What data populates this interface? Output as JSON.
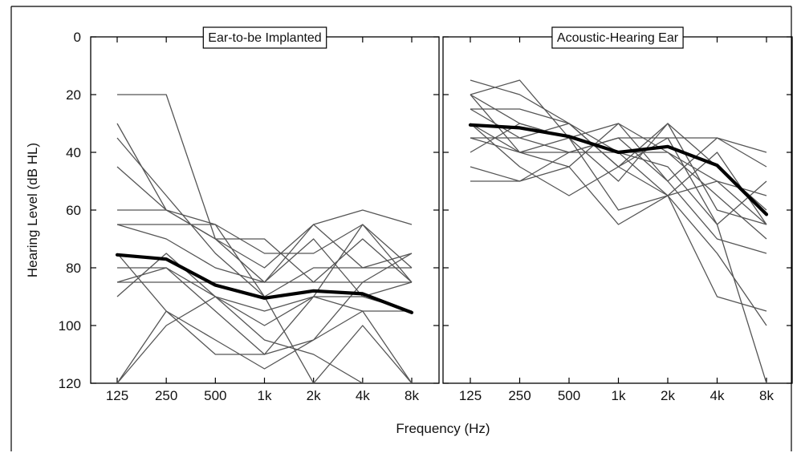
{
  "chart_data": [
    {
      "type": "line",
      "title": "Ear-to-be Implanted",
      "ylabel": "Hearing Level (dB HL)",
      "xlabel": "Frequency (Hz)",
      "x_categories": [
        "125",
        "250",
        "500",
        "1k",
        "2k",
        "4k",
        "8k"
      ],
      "x_positions_note": "octave steps",
      "ylim": [
        0,
        120
      ],
      "y_inverted": true,
      "y_ticks": [
        0,
        20,
        40,
        60,
        80,
        100,
        120
      ],
      "individual_series": [
        {
          "values": [
            20,
            20,
            70,
            70,
            85,
            70,
            85
          ]
        },
        {
          "values": [
            30,
            60,
            70,
            85,
            65,
            60,
            65
          ]
        },
        {
          "values": [
            45,
            60,
            65,
            90,
            80,
            80,
            75
          ]
        },
        {
          "values": [
            60,
            60,
            70,
            80,
            65,
            80,
            80
          ]
        },
        {
          "values": [
            65,
            65,
            65,
            75,
            75,
            65,
            80
          ]
        },
        {
          "values": [
            65,
            70,
            80,
            85,
            70,
            90,
            85
          ]
        },
        {
          "values": [
            80,
            80,
            90,
            95,
            90,
            90,
            95
          ]
        },
        {
          "values": [
            85,
            85,
            85,
            85,
            85,
            85,
            85
          ]
        },
        {
          "values": [
            90,
            75,
            90,
            100,
            90,
            95,
            120
          ]
        },
        {
          "values": [
            120,
            100,
            90,
            105,
            110,
            120,
            120
          ]
        },
        {
          "values": [
            120,
            95,
            110,
            110,
            105,
            95,
            95
          ]
        },
        {
          "values": [
            75,
            95,
            105,
            115,
            105,
            85,
            75
          ]
        },
        {
          "values": [
            35,
            55,
            75,
            90,
            120,
            100,
            120
          ]
        },
        {
          "values": [
            85,
            80,
            95,
            110,
            90,
            65,
            85
          ]
        }
      ],
      "mean_series": {
        "values": [
          75.5,
          77,
          86,
          90.5,
          88,
          89,
          95.5
        ]
      }
    },
    {
      "type": "line",
      "title": "Acoustic-Hearing Ear",
      "x_categories": [
        "125",
        "250",
        "500",
        "1k",
        "2k",
        "4k",
        "8k"
      ],
      "ylim": [
        0,
        120
      ],
      "y_inverted": true,
      "individual_series": [
        {
          "values": [
            15,
            20,
            30,
            40,
            40,
            50,
            65
          ]
        },
        {
          "values": [
            20,
            15,
            35,
            30,
            50,
            35,
            45
          ]
        },
        {
          "values": [
            20,
            30,
            35,
            40,
            55,
            40,
            65
          ]
        },
        {
          "values": [
            25,
            25,
            30,
            45,
            30,
            45,
            60
          ]
        },
        {
          "values": [
            30,
            40,
            45,
            30,
            40,
            55,
            70
          ]
        },
        {
          "values": [
            35,
            35,
            40,
            35,
            50,
            70,
            75
          ]
        },
        {
          "values": [
            40,
            30,
            35,
            50,
            30,
            60,
            65
          ]
        },
        {
          "values": [
            45,
            50,
            45,
            65,
            55,
            75,
            100
          ]
        },
        {
          "values": [
            50,
            50,
            40,
            40,
            45,
            65,
            120
          ]
        },
        {
          "values": [
            30,
            45,
            55,
            45,
            55,
            50,
            55
          ]
        },
        {
          "values": [
            35,
            40,
            40,
            35,
            35,
            35,
            40
          ]
        },
        {
          "values": [
            25,
            35,
            30,
            45,
            35,
            65,
            50
          ]
        },
        {
          "values": [
            20,
            40,
            35,
            60,
            55,
            90,
            95
          ]
        }
      ],
      "mean_series": {
        "values": [
          30.5,
          31.5,
          34.5,
          40,
          38,
          44.5,
          61.5
        ]
      }
    }
  ]
}
